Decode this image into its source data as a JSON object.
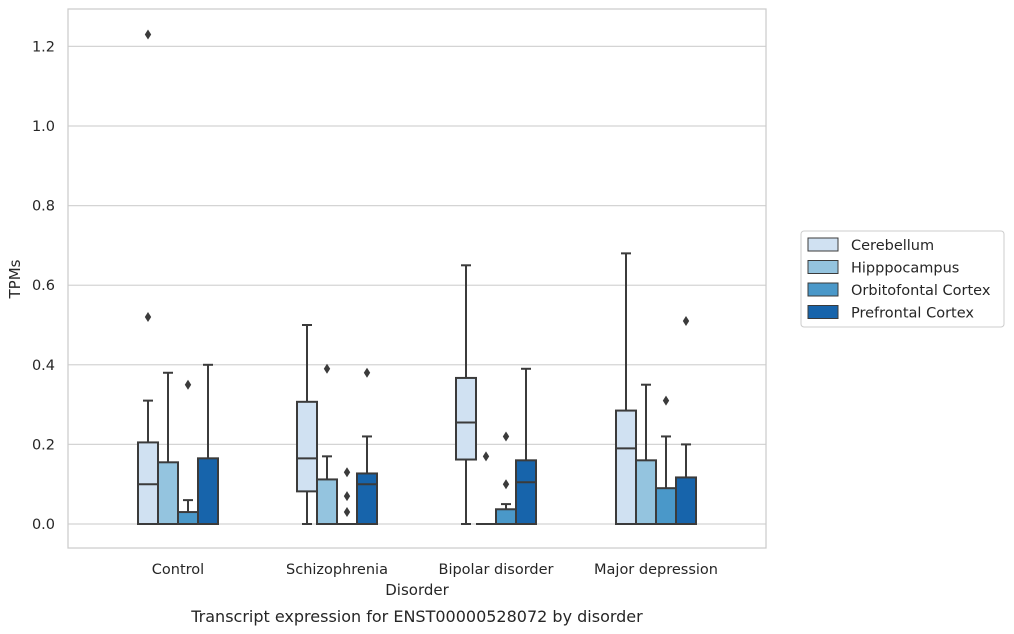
{
  "chart_data": {
    "type": "box",
    "title": "",
    "caption": "Transcript expression for ENST00000528072 by disorder",
    "xlabel": "Disorder",
    "ylabel": "TPMs",
    "ylim": [
      -0.06,
      1.29
    ],
    "yticks": [
      0.0,
      0.2,
      0.4,
      0.6,
      0.8,
      1.0,
      1.2
    ],
    "ytick_labels": [
      "0.0",
      "0.2",
      "0.4",
      "0.6",
      "0.8",
      "1.0",
      "1.2"
    ],
    "grid": "horizontal",
    "legend_position": "right",
    "categories": [
      "Control",
      "Schizophrenia",
      "Bipolar disorder",
      "Major depression"
    ],
    "series": [
      {
        "name": "Cerebellum",
        "color": "#d0e1f2",
        "boxes": [
          {
            "whisker_low": 0.0,
            "q1": 0.0,
            "median": 0.1,
            "q3": 0.205,
            "whisker_high": 0.31,
            "outliers": [
              0.52,
              1.23
            ]
          },
          {
            "whisker_low": 0.0,
            "q1": 0.082,
            "median": 0.165,
            "q3": 0.307,
            "whisker_high": 0.5,
            "outliers": []
          },
          {
            "whisker_low": 0.0,
            "q1": 0.162,
            "median": 0.255,
            "q3": 0.367,
            "whisker_high": 0.65,
            "outliers": []
          },
          {
            "whisker_low": 0.0,
            "q1": 0.0,
            "median": 0.19,
            "q3": 0.285,
            "whisker_high": 0.68,
            "outliers": []
          }
        ]
      },
      {
        "name": "Hipppocampus",
        "color": "#94c4df",
        "boxes": [
          {
            "whisker_low": 0.0,
            "q1": 0.0,
            "median": 0.0,
            "q3": 0.155,
            "whisker_high": 0.38,
            "outliers": []
          },
          {
            "whisker_low": 0.0,
            "q1": 0.0,
            "median": 0.0,
            "q3": 0.112,
            "whisker_high": 0.17,
            "outliers": [
              0.39
            ]
          },
          {
            "whisker_low": 0.0,
            "q1": 0.0,
            "median": 0.0,
            "q3": 0.0,
            "whisker_high": 0.0,
            "outliers": [
              0.17
            ]
          },
          {
            "whisker_low": 0.0,
            "q1": 0.0,
            "median": 0.0,
            "q3": 0.16,
            "whisker_high": 0.35,
            "outliers": []
          }
        ]
      },
      {
        "name": "Orbitofontal Cortex",
        "color": "#4a98c9",
        "boxes": [
          {
            "whisker_low": 0.0,
            "q1": 0.0,
            "median": 0.0,
            "q3": 0.03,
            "whisker_high": 0.06,
            "outliers": [
              0.35
            ]
          },
          {
            "whisker_low": 0.0,
            "q1": 0.0,
            "median": 0.0,
            "q3": 0.0,
            "whisker_high": 0.0,
            "outliers": [
              0.03,
              0.07,
              0.13
            ]
          },
          {
            "whisker_low": 0.0,
            "q1": 0.0,
            "median": 0.0,
            "q3": 0.037,
            "whisker_high": 0.05,
            "outliers": [
              0.1,
              0.22
            ]
          },
          {
            "whisker_low": 0.0,
            "q1": 0.0,
            "median": 0.0,
            "q3": 0.09,
            "whisker_high": 0.22,
            "outliers": [
              0.31
            ]
          }
        ]
      },
      {
        "name": "Prefrontal Cortex",
        "color": "#1764ab",
        "boxes": [
          {
            "whisker_low": 0.0,
            "q1": 0.0,
            "median": 0.0,
            "q3": 0.165,
            "whisker_high": 0.4,
            "outliers": []
          },
          {
            "whisker_low": 0.0,
            "q1": 0.0,
            "median": 0.1,
            "q3": 0.127,
            "whisker_high": 0.22,
            "outliers": [
              0.38
            ]
          },
          {
            "whisker_low": 0.0,
            "q1": 0.0,
            "median": 0.105,
            "q3": 0.16,
            "whisker_high": 0.39,
            "outliers": []
          },
          {
            "whisker_low": 0.0,
            "q1": 0.0,
            "median": 0.0,
            "q3": 0.117,
            "whisker_high": 0.2,
            "outliers": [
              0.51
            ]
          }
        ]
      }
    ]
  }
}
